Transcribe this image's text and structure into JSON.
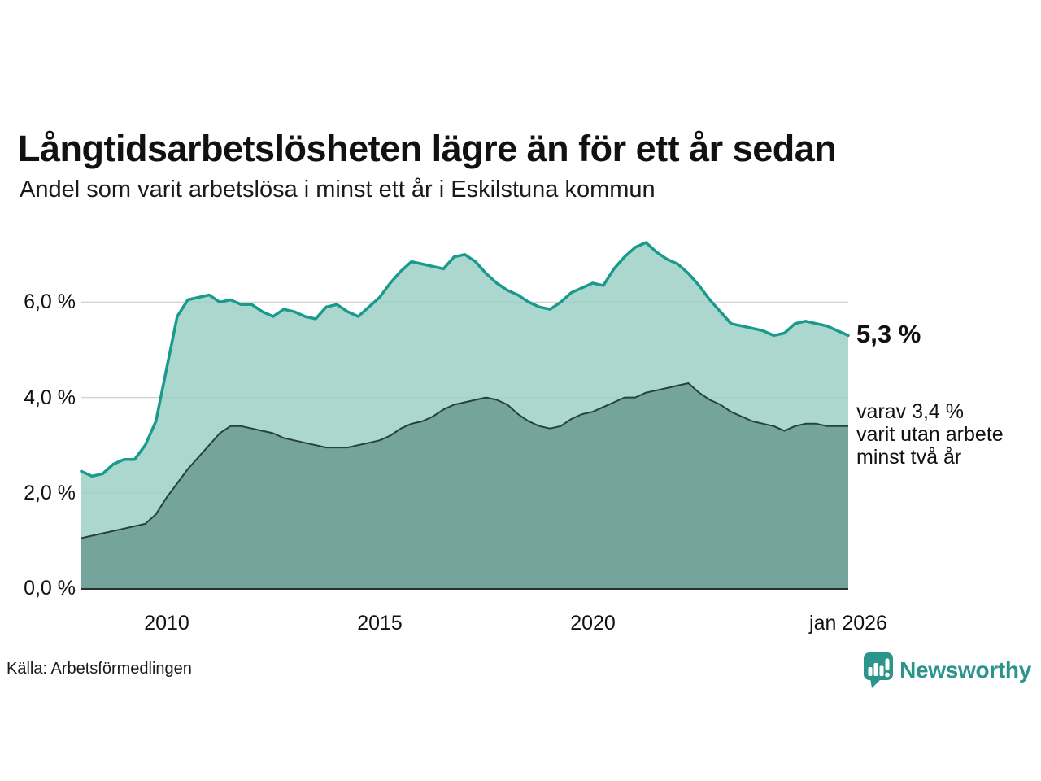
{
  "header": {
    "title": "Långtidsarbetslösheten lägre än för ett år sedan",
    "subtitle": "Andel som varit arbetslösa i minst ett år i Eskilstuna kommun"
  },
  "chart_data": {
    "type": "area",
    "title": "Långtidsarbetslösheten lägre än för ett år sedan",
    "subtitle": "Andel som varit arbetslösa i minst ett år i Eskilstuna kommun",
    "unit": "%",
    "xlim": [
      2008,
      2026
    ],
    "ylim": [
      0,
      7.5
    ],
    "grid": "horizontal",
    "legend_position": "none",
    "x": [
      2008,
      2008.25,
      2008.5,
      2008.75,
      2009,
      2009.25,
      2009.5,
      2009.75,
      2010,
      2010.25,
      2010.5,
      2010.75,
      2011,
      2011.25,
      2011.5,
      2011.75,
      2012,
      2012.25,
      2012.5,
      2012.75,
      2013,
      2013.25,
      2013.5,
      2013.75,
      2014,
      2014.25,
      2014.5,
      2014.75,
      2015,
      2015.25,
      2015.5,
      2015.75,
      2016,
      2016.25,
      2016.5,
      2016.75,
      2017,
      2017.25,
      2017.5,
      2017.75,
      2018,
      2018.25,
      2018.5,
      2018.75,
      2019,
      2019.25,
      2019.5,
      2019.75,
      2020,
      2020.25,
      2020.5,
      2020.75,
      2021,
      2021.25,
      2021.5,
      2021.75,
      2022,
      2022.25,
      2022.5,
      2022.75,
      2023,
      2023.25,
      2023.5,
      2023.75,
      2024,
      2024.25,
      2024.5,
      2024.75,
      2025,
      2025.25,
      2025.5,
      2025.75,
      2026
    ],
    "series": [
      {
        "name": "Andel arbetslösa minst ett år",
        "line_color": "#1a9a8c",
        "fill_color": "#9cd0c7",
        "end_value_label": "5,3 %",
        "values": [
          2.45,
          2.35,
          2.4,
          2.6,
          2.7,
          2.7,
          3.0,
          3.5,
          4.6,
          5.7,
          6.05,
          6.1,
          6.15,
          6.0,
          6.05,
          5.95,
          5.95,
          5.8,
          5.7,
          5.85,
          5.8,
          5.7,
          5.65,
          5.9,
          5.95,
          5.8,
          5.7,
          5.9,
          6.1,
          6.4,
          6.65,
          6.85,
          6.8,
          6.75,
          6.7,
          6.95,
          7.0,
          6.85,
          6.6,
          6.4,
          6.25,
          6.15,
          6.0,
          5.9,
          5.85,
          6.0,
          6.2,
          6.3,
          6.4,
          6.35,
          6.7,
          6.95,
          7.15,
          7.25,
          7.05,
          6.9,
          6.8,
          6.6,
          6.35,
          6.05,
          5.8,
          5.55,
          5.5,
          5.45,
          5.4,
          5.3,
          5.35,
          5.55,
          5.6,
          5.55,
          5.5,
          5.4,
          5.3
        ]
      },
      {
        "name": "Varav arbetslösa minst två år",
        "line_color": "#25423d",
        "fill_color": "#74a49c",
        "end_value_label": "3,4 %",
        "values": [
          1.05,
          1.1,
          1.15,
          1.2,
          1.25,
          1.3,
          1.35,
          1.55,
          1.9,
          2.2,
          2.5,
          2.75,
          3.0,
          3.25,
          3.4,
          3.4,
          3.35,
          3.3,
          3.25,
          3.15,
          3.1,
          3.05,
          3.0,
          2.95,
          2.95,
          2.95,
          3.0,
          3.05,
          3.1,
          3.2,
          3.35,
          3.45,
          3.5,
          3.6,
          3.75,
          3.85,
          3.9,
          3.95,
          4.0,
          3.95,
          3.85,
          3.65,
          3.5,
          3.4,
          3.35,
          3.4,
          3.55,
          3.65,
          3.7,
          3.8,
          3.9,
          4.0,
          4.0,
          4.1,
          4.15,
          4.2,
          4.25,
          4.3,
          4.1,
          3.95,
          3.85,
          3.7,
          3.6,
          3.5,
          3.45,
          3.4,
          3.3,
          3.4,
          3.45,
          3.45,
          3.4,
          3.4,
          3.4
        ]
      }
    ],
    "yticks": [
      {
        "value": 6,
        "label": "6,0 %"
      },
      {
        "value": 4,
        "label": "4,0 %"
      },
      {
        "value": 2,
        "label": "2,0 %"
      },
      {
        "value": 0,
        "label": "0,0 %"
      }
    ],
    "xticks": [
      {
        "value": 2010,
        "label": "2010"
      },
      {
        "value": 2015,
        "label": "2015"
      },
      {
        "value": 2020,
        "label": "2020"
      },
      {
        "value": 2026,
        "label": "jan 2026"
      }
    ],
    "end_label_main": "5,3 %",
    "end_note_lines": [
      "varav 3,4 %",
      "varit utan arbete",
      "minst två år"
    ]
  },
  "footer": {
    "source": "Källa: Arbetsförmedlingen",
    "brand": "Newsworthy"
  },
  "colors": {
    "accent_teal": "#1a9a8c",
    "light_fill": "#9cd0c7",
    "dark_fill": "#74a49c",
    "dark_line": "#25423d",
    "grid": "#d5d5d5",
    "baseline": "#2e2e2e",
    "text": "#111111",
    "brand_teal": "#2b948b"
  }
}
